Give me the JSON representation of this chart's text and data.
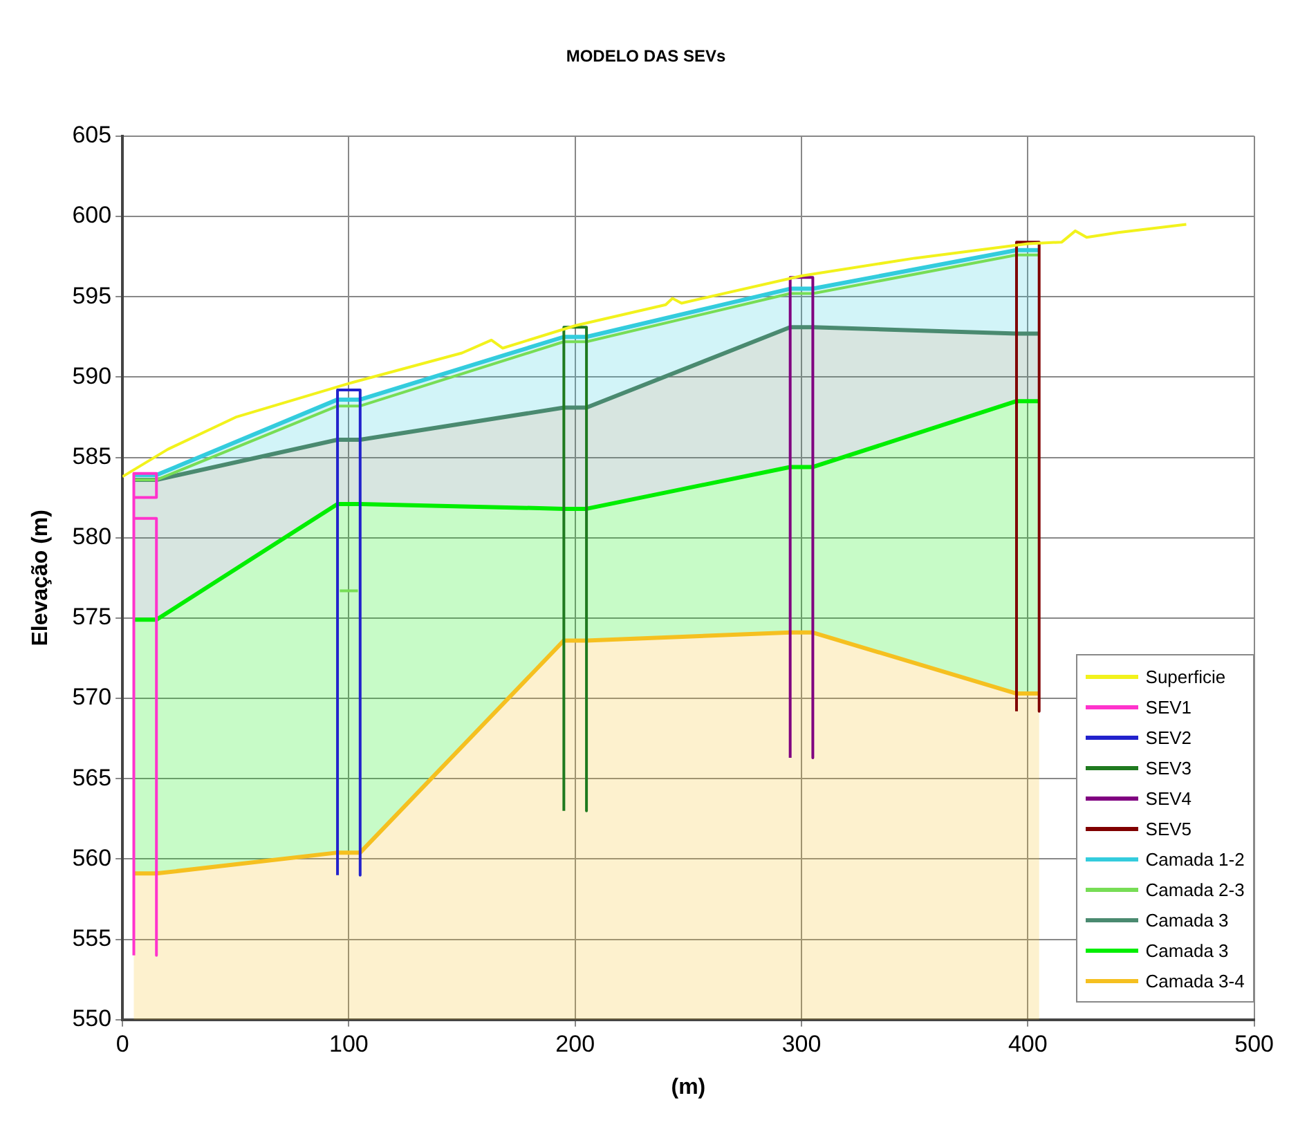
{
  "chart_data": {
    "type": "line",
    "title": "MODELO DAS SEVs",
    "xlabel": "(m)",
    "ylabel": "Elevação (m)",
    "xlim": [
      0,
      500
    ],
    "xticks": [
      0,
      100,
      200,
      300,
      400,
      500
    ],
    "ylim": [
      550,
      605
    ],
    "yticks": [
      550,
      555,
      560,
      565,
      570,
      575,
      580,
      585,
      590,
      595,
      600,
      605
    ],
    "grid": true,
    "legend": "bottom right",
    "marker": "none",
    "series": [
      {
        "name": "Superficie",
        "color": "#f2f21c",
        "x": [
          0,
          20,
          50,
          100,
          150,
          163,
          168,
          200,
          240,
          243,
          247,
          300,
          350,
          400,
          415,
          421,
          426,
          440,
          470
        ],
        "values": [
          583.8,
          585.5,
          587.5,
          589.6,
          591.5,
          592.3,
          591.8,
          593.2,
          594.5,
          594.9,
          594.6,
          596.3,
          597.4,
          598.3,
          598.4,
          599.1,
          598.7,
          599.0,
          599.5
        ]
      },
      {
        "name": "SEV1",
        "color": "#ff33cc",
        "x": [
          5,
          5,
          15,
          15,
          5,
          5,
          15,
          15
        ],
        "values": [
          554,
          584,
          584,
          582.5,
          582.5,
          581.2,
          581.2,
          554
        ]
      },
      {
        "name": "SEV2",
        "color": "#2222cc",
        "x": [
          95,
          95,
          105,
          105
        ],
        "values": [
          559,
          589.2,
          589.2,
          559
        ]
      },
      {
        "name": "SEV3",
        "color": "#1f7a1f",
        "x": [
          195,
          195,
          205,
          205
        ],
        "values": [
          563,
          593.1,
          593.1,
          563
        ]
      },
      {
        "name": "SEV4",
        "color": "#800080",
        "x": [
          295,
          295,
          305,
          305
        ],
        "values": [
          566.3,
          596.2,
          596.2,
          566.3
        ]
      },
      {
        "name": "SEV5",
        "color": "#800000",
        "x": [
          395,
          395,
          405,
          405
        ],
        "values": [
          569.2,
          598.4,
          598.4,
          569.2
        ]
      },
      {
        "name": "Camada 1-2",
        "type": "area",
        "color": "#33ccdd",
        "x": [
          5,
          15,
          95,
          105,
          195,
          205,
          295,
          305,
          395,
          405
        ],
        "values": [
          583.9,
          583.9,
          588.6,
          588.6,
          592.5,
          592.5,
          595.5,
          595.5,
          597.9,
          597.9
        ]
      },
      {
        "name": "Camada 2-3",
        "color": "#77dd55",
        "x": [
          5,
          15,
          95,
          105,
          195,
          205,
          295,
          305,
          395,
          405,
          100,
          96,
          104
        ],
        "values": [
          583.6,
          583.6,
          588.2,
          588.2,
          592.2,
          592.2,
          595.2,
          595.2,
          597.6,
          597.6,
          null,
          576.7,
          576.7
        ]
      },
      {
        "name": "Camada 3",
        "type": "area",
        "color": "#4a8a70",
        "x": [
          5,
          15,
          95,
          105,
          195,
          205,
          295,
          305,
          395,
          405
        ],
        "values": [
          583.6,
          583.6,
          586.1,
          586.1,
          588.1,
          588.1,
          593.1,
          593.1,
          592.7,
          592.7
        ]
      },
      {
        "name": "Camada 3",
        "type": "area",
        "color": "#00ee00",
        "x": [
          5,
          15,
          95,
          105,
          195,
          205,
          295,
          305,
          395,
          405
        ],
        "values": [
          574.9,
          574.9,
          582.1,
          582.1,
          581.8,
          581.8,
          584.4,
          584.4,
          588.5,
          588.5
        ]
      },
      {
        "name": "Camada 3-4",
        "type": "area",
        "color": "#f5c020",
        "x": [
          5,
          15,
          95,
          105,
          195,
          205,
          295,
          305,
          395,
          405
        ],
        "values": [
          559.1,
          559.1,
          560.4,
          560.4,
          573.6,
          573.6,
          574.1,
          574.1,
          570.3,
          570.3
        ]
      }
    ]
  }
}
